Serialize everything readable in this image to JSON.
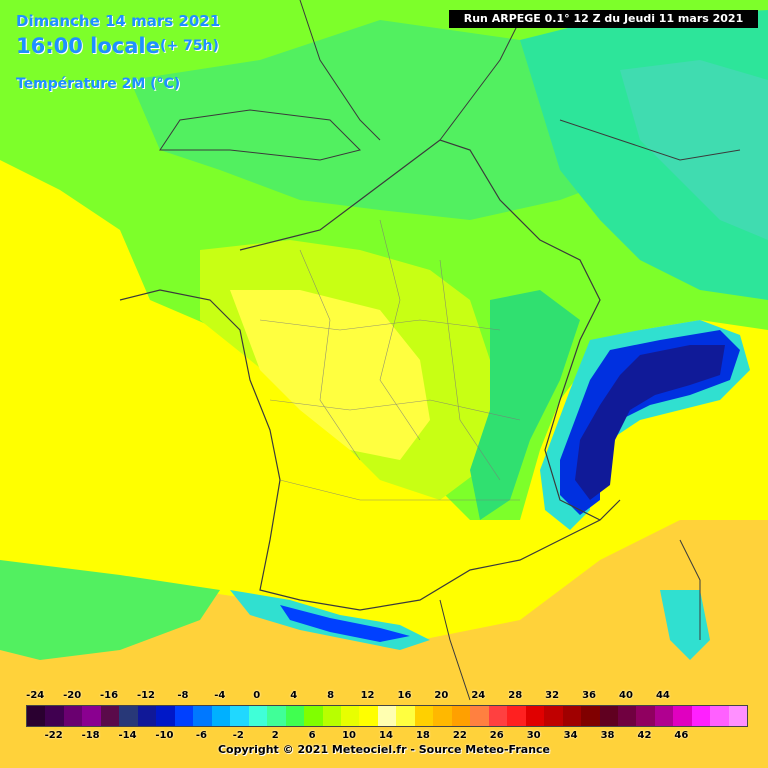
{
  "header": {
    "date": "Dimanche 14 mars 2021",
    "time": "16:00 locale",
    "lead": "(+ 75h)",
    "parameter": "Température 2M (°C)"
  },
  "run_info": "Run ARPEGE 0.1° 12 Z du Jeudi 11 mars 2021",
  "copyright": "Copyright © 2021 Meteociel.fr - Source Meteo-France",
  "scale": {
    "top_labels": [
      "-24",
      "-20",
      "-16",
      "-12",
      "-8",
      "-4",
      "0",
      "4",
      "8",
      "12",
      "16",
      "20",
      "24",
      "28",
      "32",
      "36",
      "40",
      "44"
    ],
    "bottom_labels": [
      "-22",
      "-18",
      "-14",
      "-10",
      "-6",
      "-2",
      "2",
      "6",
      "10",
      "14",
      "18",
      "22",
      "26",
      "30",
      "34",
      "38",
      "42",
      "46"
    ],
    "colors": [
      "#2a0030",
      "#400050",
      "#6a0070",
      "#8a0090",
      "#5a0a4a",
      "#283878",
      "#101898",
      "#0018c8",
      "#0040ff",
      "#0078ff",
      "#00b0ff",
      "#20d8ff",
      "#40ffd8",
      "#40ff98",
      "#40ff50",
      "#80ff00",
      "#b8ff00",
      "#e8ff00",
      "#ffff00",
      "#ffffb0",
      "#ffff40",
      "#ffd000",
      "#ffb800",
      "#ffa000",
      "#ff8040",
      "#ff4040",
      "#ff2020",
      "#e00000",
      "#c00000",
      "#a00000",
      "#800000",
      "#600020",
      "#700040",
      "#900060",
      "#b00090",
      "#e000c0",
      "#ff20ff",
      "#ff60ff",
      "#ff90ff"
    ]
  }
}
